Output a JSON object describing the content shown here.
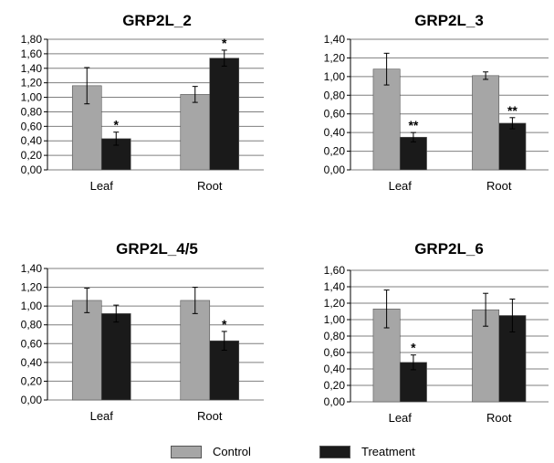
{
  "colors": {
    "control": "#a6a6a6",
    "treatment": "#1a1a1a",
    "grid": "#7f7f7f"
  },
  "legend": {
    "control": "Control",
    "treatment": "Treatment"
  },
  "chart_data": [
    {
      "type": "bar",
      "title": "GRP2L_2",
      "categories": [
        "Leaf",
        "Root"
      ],
      "ylim": [
        0,
        1.8
      ],
      "ystep": 0.2,
      "grid": true,
      "series": [
        {
          "name": "Control",
          "values": [
            1.16,
            1.04
          ],
          "errors": [
            0.25,
            0.11
          ],
          "sig": [
            "",
            ""
          ]
        },
        {
          "name": "Treatment",
          "values": [
            0.43,
            1.54
          ],
          "errors": [
            0.09,
            0.11
          ],
          "sig": [
            "*",
            "*"
          ]
        }
      ]
    },
    {
      "type": "bar",
      "title": "GRP2L_3",
      "categories": [
        "Leaf",
        "Root"
      ],
      "ylim": [
        0,
        1.4
      ],
      "ystep": 0.2,
      "grid": true,
      "series": [
        {
          "name": "Control",
          "values": [
            1.08,
            1.01
          ],
          "errors": [
            0.17,
            0.04
          ],
          "sig": [
            "",
            ""
          ]
        },
        {
          "name": "Treatment",
          "values": [
            0.35,
            0.5
          ],
          "errors": [
            0.05,
            0.06
          ],
          "sig": [
            "**",
            "**"
          ]
        }
      ]
    },
    {
      "type": "bar",
      "title": "GRP2L_4/5",
      "categories": [
        "Leaf",
        "Root"
      ],
      "ylim": [
        0,
        1.4
      ],
      "ystep": 0.2,
      "grid": true,
      "series": [
        {
          "name": "Control",
          "values": [
            1.06,
            1.06
          ],
          "errors": [
            0.13,
            0.14
          ],
          "sig": [
            "",
            ""
          ]
        },
        {
          "name": "Treatment",
          "values": [
            0.92,
            0.63
          ],
          "errors": [
            0.09,
            0.1
          ],
          "sig": [
            "",
            "*"
          ]
        }
      ]
    },
    {
      "type": "bar",
      "title": "GRP2L_6",
      "categories": [
        "Leaf",
        "Root"
      ],
      "ylim": [
        0,
        1.6
      ],
      "ystep": 0.2,
      "grid": true,
      "series": [
        {
          "name": "Control",
          "values": [
            1.13,
            1.12
          ],
          "errors": [
            0.23,
            0.2
          ],
          "sig": [
            "",
            ""
          ]
        },
        {
          "name": "Treatment",
          "values": [
            0.48,
            1.05
          ],
          "errors": [
            0.09,
            0.2
          ],
          "sig": [
            "*",
            ""
          ]
        }
      ]
    }
  ]
}
